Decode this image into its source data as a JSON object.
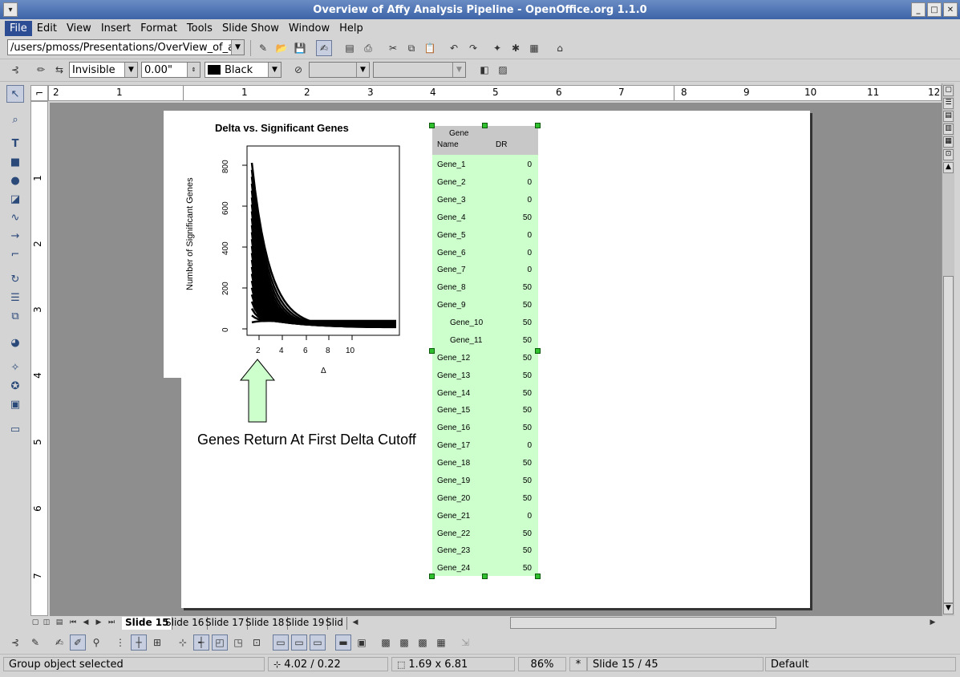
{
  "window": {
    "title": "Overview of Affy Analysis Pipeline - OpenOffice.org 1.1.0"
  },
  "menu": [
    "File",
    "Edit",
    "View",
    "Insert",
    "Format",
    "Tools",
    "Slide Show",
    "Window",
    "Help"
  ],
  "toolbar": {
    "path": "/users/pmoss/Presentations/OverView_of_affy_a"
  },
  "format_bar": {
    "line_style": "Invisible",
    "line_width": "0.00\"",
    "line_color": "Black",
    "line_color_swatch": "#000000"
  },
  "hruler_numbers": [
    "2",
    "1",
    "1",
    "2",
    "3",
    "4",
    "5",
    "6",
    "7",
    "8",
    "9",
    "10",
    "11",
    "12"
  ],
  "vruler_numbers": [
    "1",
    "2",
    "3",
    "4",
    "5",
    "6",
    "7"
  ],
  "chart": {
    "title": "Delta vs. Significant Genes",
    "ylabel": "Number of Significant Genes",
    "xlabel": "Δ",
    "yticks": [
      "800",
      "600",
      "400",
      "200",
      "0"
    ],
    "xticks": [
      "2",
      "4",
      "6",
      "8",
      "10"
    ]
  },
  "caption": "Genes Return At First Delta Cutoff",
  "table": {
    "header_gene": "Gene",
    "header_name": "Name",
    "header_dr": "DR",
    "header_bg": "#c8c8c8",
    "body_bg": "#ccffcc",
    "rows": [
      {
        "name": "Gene_1",
        "dr": "0"
      },
      {
        "name": "Gene_2",
        "dr": "0"
      },
      {
        "name": "Gene_3",
        "dr": "0"
      },
      {
        "name": "Gene_4",
        "dr": "50"
      },
      {
        "name": "Gene_5",
        "dr": "0"
      },
      {
        "name": "Gene_6",
        "dr": "0"
      },
      {
        "name": "Gene_7",
        "dr": "0"
      },
      {
        "name": "Gene_8",
        "dr": "50"
      },
      {
        "name": "Gene_9",
        "dr": "50"
      },
      {
        "name": "Gene_10",
        "dr": "50"
      },
      {
        "name": "Gene_11",
        "dr": "50"
      },
      {
        "name": "Gene_12",
        "dr": "50"
      },
      {
        "name": "Gene_13",
        "dr": "50"
      },
      {
        "name": "Gene_14",
        "dr": "50"
      },
      {
        "name": "Gene_15",
        "dr": "50"
      },
      {
        "name": "Gene_16",
        "dr": "50"
      },
      {
        "name": "Gene_17",
        "dr": "0"
      },
      {
        "name": "Gene_18",
        "dr": "50"
      },
      {
        "name": "Gene_19",
        "dr": "50"
      },
      {
        "name": "Gene_20",
        "dr": "50"
      },
      {
        "name": "Gene_21",
        "dr": "0"
      },
      {
        "name": "Gene_22",
        "dr": "50"
      },
      {
        "name": "Gene_23",
        "dr": "50"
      },
      {
        "name": "Gene_24",
        "dr": "50"
      }
    ]
  },
  "tabs": [
    "Slide 15",
    "Slide 16",
    "Slide 17",
    "Slide 18",
    "Slide 19",
    "Slid"
  ],
  "status": {
    "message": "Group object selected",
    "position": "4.02 / 0.22",
    "size": "1.69 x 6.81",
    "zoom": "86%",
    "modified": "*",
    "slide": "Slide 15 / 45",
    "layout": "Default"
  }
}
